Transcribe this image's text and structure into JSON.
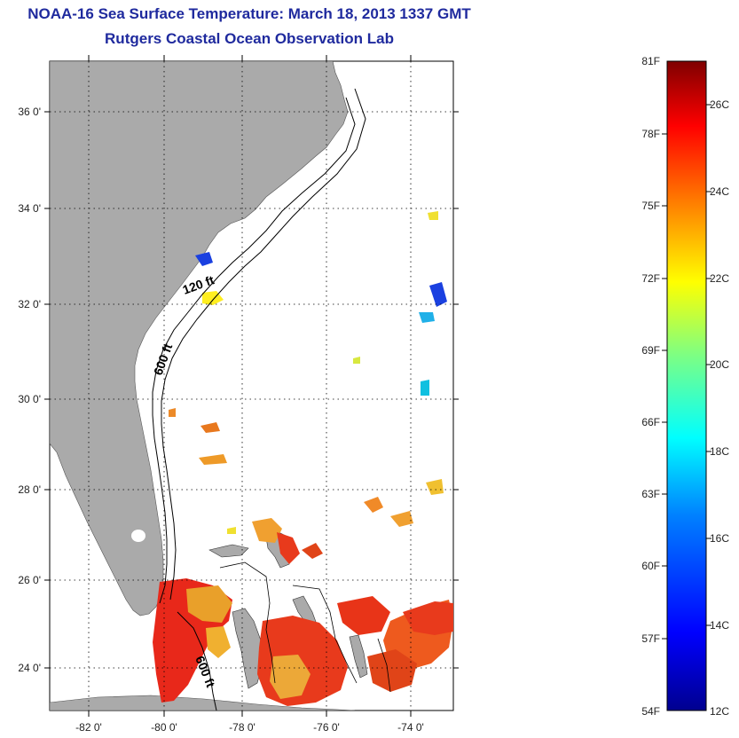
{
  "title": "NOAA-16 Sea Surface Temperature:  March 18, 2013 1337 GMT",
  "subtitle": "Rutgers Coastal Ocean Observation Lab",
  "map": {
    "lat_ticks": [
      "36 0'",
      "34 0'",
      "32 0'",
      "30 0'",
      "28 0'",
      "26 0'",
      "24 0'"
    ],
    "lon_ticks": [
      "-82 0'",
      "-80 0'",
      "-78 0'",
      "-76 0'",
      "-74 0'"
    ],
    "contour_labels": [
      "120 ft",
      "600 ft",
      "600 ft"
    ],
    "colors": {
      "land": "#aaaaaa",
      "water": "#ffffff",
      "grid": "#000000"
    }
  },
  "colorbar": {
    "f_labels": [
      "81F",
      "78F",
      "75F",
      "72F",
      "69F",
      "66F",
      "63F",
      "60F",
      "57F",
      "54F"
    ],
    "c_labels": [
      "26C",
      "24C",
      "22C",
      "20C",
      "18C",
      "16C",
      "14C",
      "12C"
    ],
    "colors": [
      "#7f0000",
      "#ff0000",
      "#ff8000",
      "#ffff00",
      "#80ff80",
      "#00ffff",
      "#0080ff",
      "#0000ff",
      "#00008f"
    ]
  }
}
